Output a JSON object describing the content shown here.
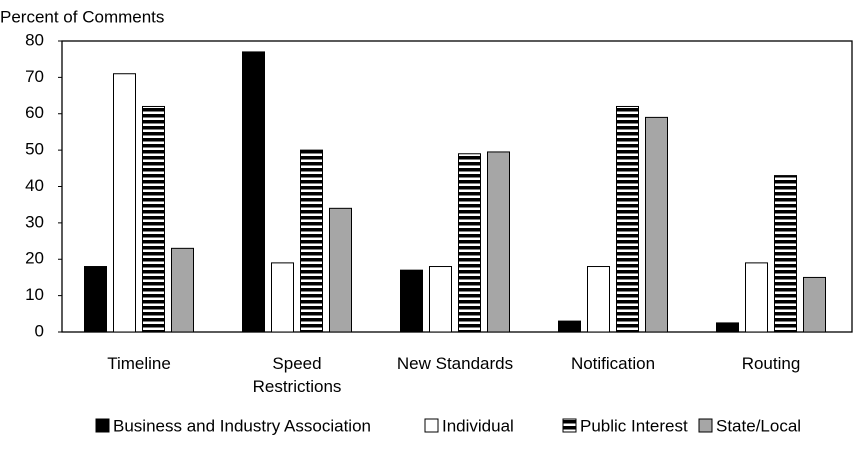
{
  "chart_data": {
    "type": "bar",
    "y_label": "Percent of Comments",
    "categories": [
      "Timeline",
      "Speed Restrictions",
      "New Standards",
      "Notification",
      "Routing"
    ],
    "series": [
      {
        "name": "Business and Industry Association",
        "color": "#000000",
        "values": [
          18,
          77,
          17,
          3,
          2.5
        ]
      },
      {
        "name": "Individual",
        "color": "#ffffff",
        "values": [
          71,
          19,
          18,
          18,
          19
        ]
      },
      {
        "name": "Public Interest",
        "color": "striped",
        "values": [
          62,
          50,
          49,
          62,
          43
        ]
      },
      {
        "name": "State/Local",
        "color": "#a6a6a6",
        "values": [
          23,
          34,
          49.5,
          59,
          15
        ]
      }
    ],
    "ylim": [
      0,
      80
    ],
    "yticks": [
      0,
      10,
      20,
      30,
      40,
      50,
      60,
      70,
      80
    ],
    "grid": false
  }
}
